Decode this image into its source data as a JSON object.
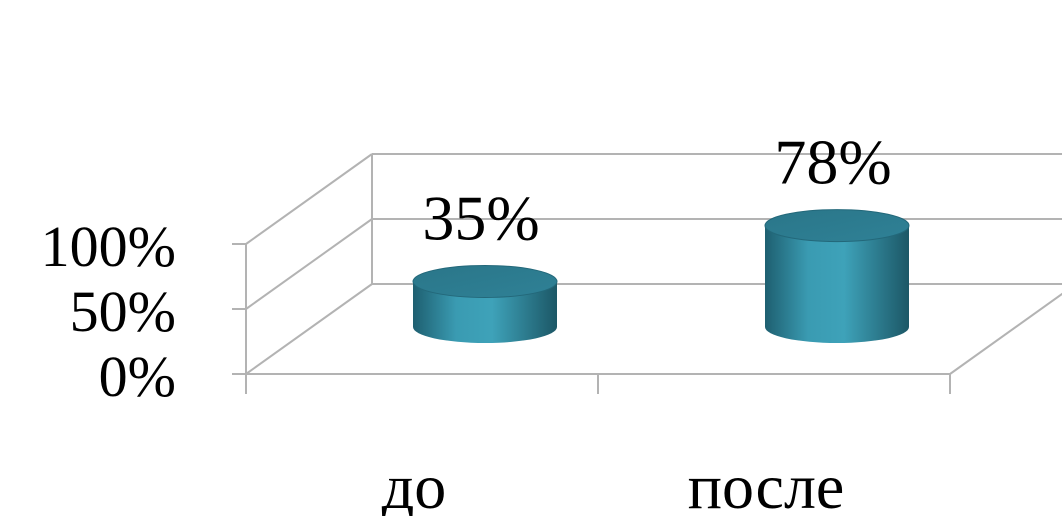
{
  "chart_data": {
    "type": "bar",
    "style": "3d-cylinder",
    "categories": [
      "до",
      "после"
    ],
    "values": [
      35,
      78
    ],
    "value_labels": [
      "35%",
      "78%"
    ],
    "y_ticks": [
      {
        "value": 0,
        "label": "0%"
      },
      {
        "value": 50,
        "label": "50%"
      },
      {
        "value": 100,
        "label": "100%"
      }
    ],
    "ylim": [
      0,
      100
    ],
    "grid": true,
    "legend": "none"
  },
  "colors": {
    "bar_mid": "#3a9bb2",
    "bar_dark": "#1e5f70",
    "bar_top": "#2a7689",
    "grid": "#b3b3b3",
    "text": "#000000"
  }
}
